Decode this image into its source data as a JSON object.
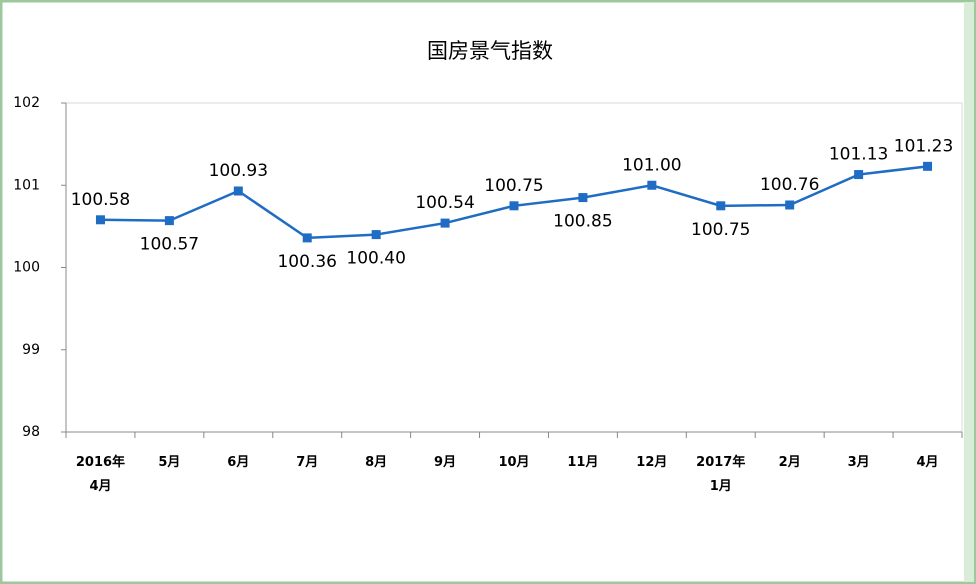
{
  "chart_data": {
    "type": "line",
    "title": "国房景气指数",
    "categories": [
      "2016年\n4月",
      "5月",
      "6月",
      "7月",
      "8月",
      "9月",
      "10月",
      "11月",
      "12月",
      "2017年\n1月",
      "2月",
      "3月",
      "4月"
    ],
    "series": [
      {
        "color": "#1f6cc4",
        "values": [
          100.58,
          100.57,
          100.93,
          100.36,
          100.4,
          100.54,
          100.75,
          100.85,
          101.0,
          100.75,
          100.76,
          101.13,
          101.23
        ],
        "value_labels": [
          "100.58",
          "100.57",
          "100.93",
          "100.36",
          "100.40",
          "100.54",
          "100.75",
          "100.85",
          "101.00",
          "100.75",
          "100.76",
          "101.13",
          "101.23"
        ]
      }
    ],
    "ylim": [
      98,
      102
    ],
    "yticks": [
      98,
      99,
      100,
      101,
      102
    ]
  }
}
